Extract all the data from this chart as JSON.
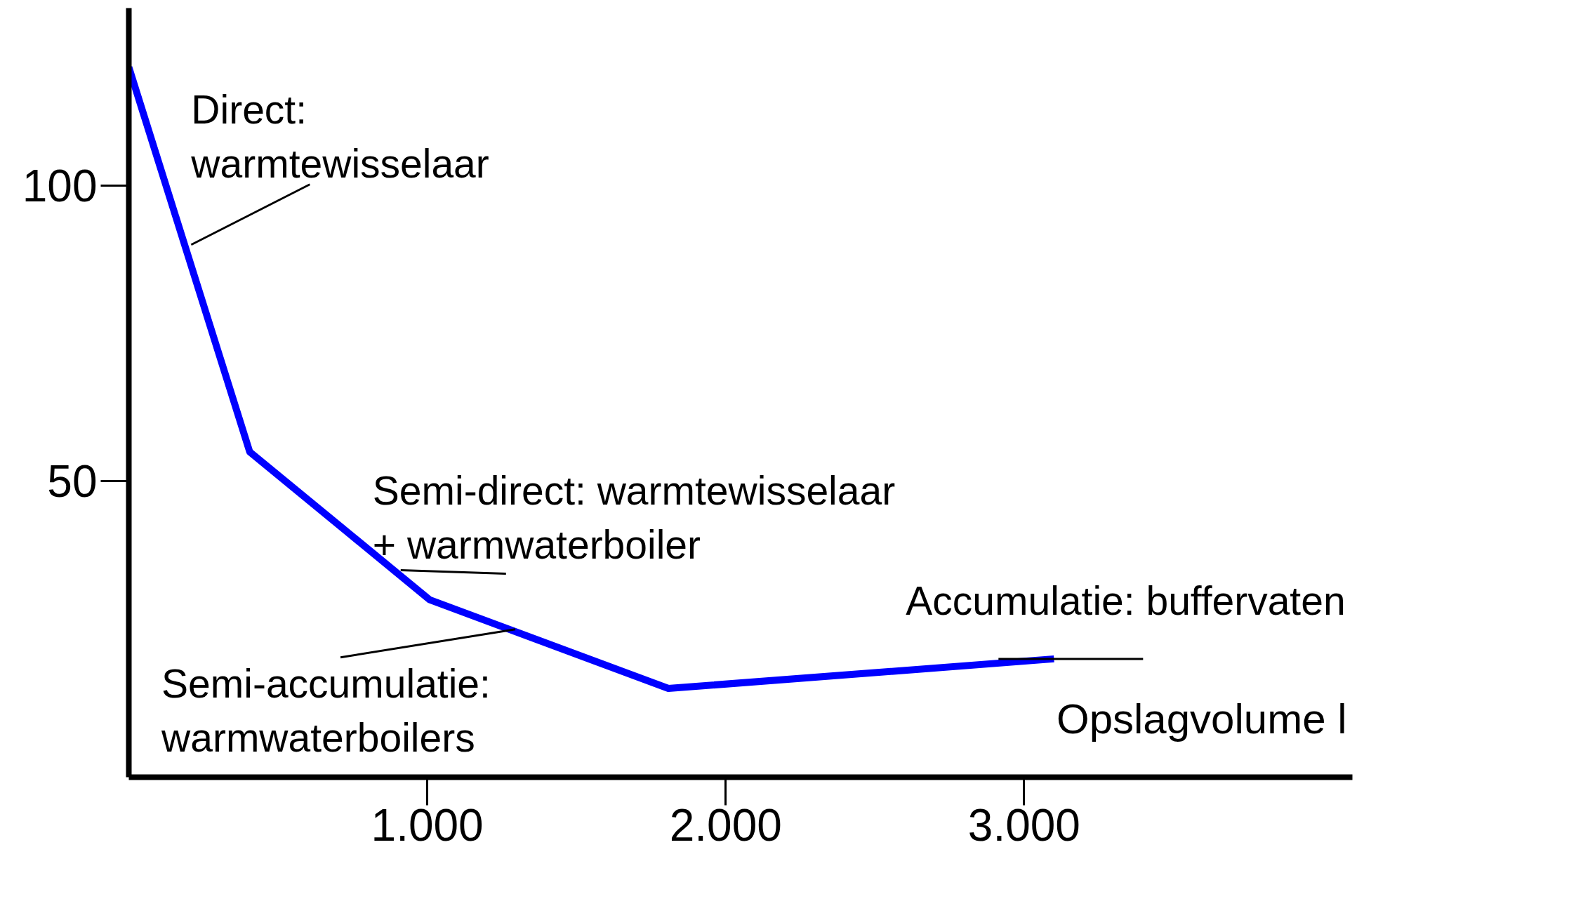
{
  "chart_data": {
    "type": "line",
    "xlabel": "Opslagvolume l",
    "x": [
      0,
      405,
      1008,
      1808,
      3100
    ],
    "series": [
      {
        "color": "#0000ff",
        "values": [
          120,
          55,
          30,
          15,
          20
        ]
      }
    ],
    "xlim": [
      0,
      4100
    ],
    "ylim": [
      0,
      130
    ],
    "xticks": [
      {
        "value": 1000,
        "label": "1.000"
      },
      {
        "value": 2000,
        "label": "2.000"
      },
      {
        "value": 3000,
        "label": "3.000"
      }
    ],
    "yticks": [
      50,
      100
    ],
    "grid": false,
    "marker": "none",
    "line_style": "solid",
    "annotations": [
      {
        "text": "Direct:\nwarmtewisselaar",
        "x": 209,
        "y": 90
      },
      {
        "text": "Semi-direct: warmtewisselaar\n+ warmwaterboiler",
        "x": 911,
        "y": 35
      },
      {
        "text": "Semi-accumulatie:\nwarmwaterboilers",
        "x": 1295,
        "y": 25
      },
      {
        "text": "Accumulatie: buffervaten",
        "x": 2914,
        "y": 20
      }
    ]
  }
}
